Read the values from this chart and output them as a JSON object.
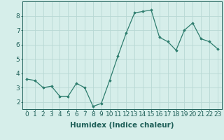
{
  "x": [
    0,
    1,
    2,
    3,
    4,
    5,
    6,
    7,
    8,
    9,
    10,
    11,
    12,
    13,
    14,
    15,
    16,
    17,
    18,
    19,
    20,
    21,
    22,
    23
  ],
  "y": [
    3.6,
    3.5,
    3.0,
    3.1,
    2.4,
    2.4,
    3.3,
    3.0,
    1.7,
    1.9,
    3.5,
    5.2,
    6.8,
    8.2,
    8.3,
    8.4,
    6.5,
    6.2,
    5.6,
    7.0,
    7.5,
    6.4,
    6.2,
    5.7
  ],
  "xlabel": "Humidex (Indice chaleur)",
  "xlim": [
    -0.5,
    23.5
  ],
  "ylim": [
    1.5,
    9.0
  ],
  "yticks": [
    2,
    3,
    4,
    5,
    6,
    7,
    8
  ],
  "xticks": [
    0,
    1,
    2,
    3,
    4,
    5,
    6,
    7,
    8,
    9,
    10,
    11,
    12,
    13,
    14,
    15,
    16,
    17,
    18,
    19,
    20,
    21,
    22,
    23
  ],
  "line_color": "#2e7d6e",
  "marker": "D",
  "marker_size": 1.8,
  "bg_color": "#d6eeea",
  "grid_color": "#b8d8d4",
  "axis_color": "#1e5f58",
  "xlabel_fontsize": 7.5,
  "tick_fontsize": 6.5
}
